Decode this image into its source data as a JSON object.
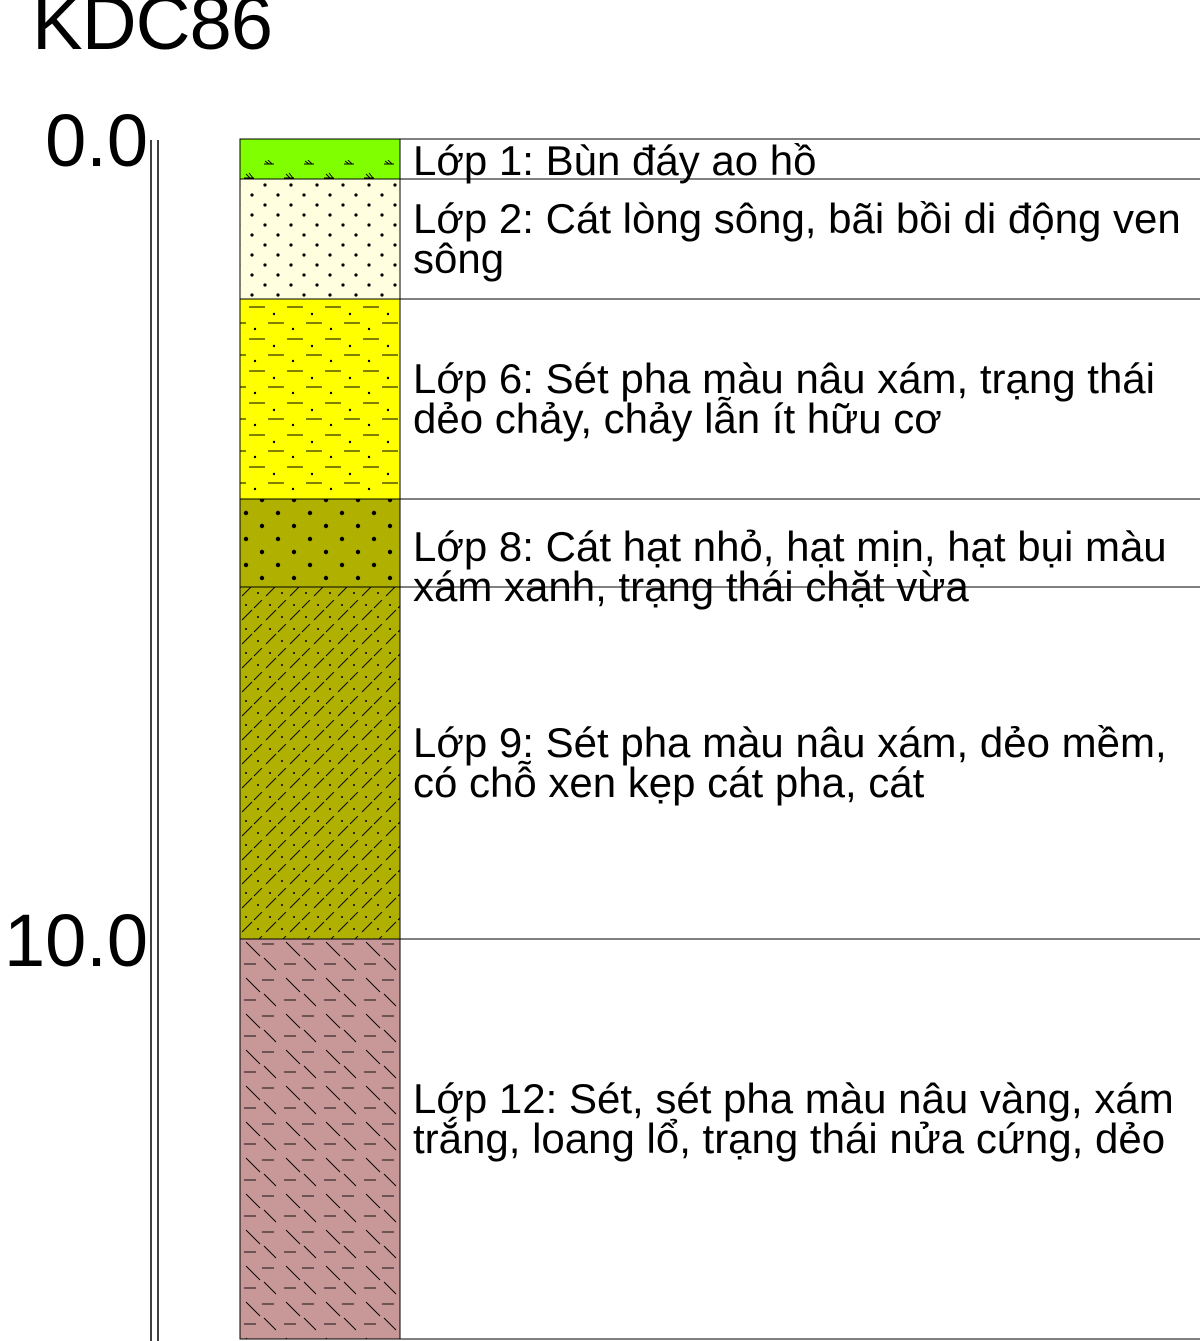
{
  "borehole": {
    "name": "KDC86",
    "depth_labels": [
      "0.0",
      "10.0"
    ]
  },
  "layers": [
    {
      "top": 0.0,
      "bottom": 0.5,
      "description": "Lớp 1: Bùn đáy ao hồ",
      "color": "#80ff00",
      "pattern": "grass"
    },
    {
      "top": 0.5,
      "bottom": 2.0,
      "description": "Lớp 2: Cát lòng sông, bãi bồi di động ven sông",
      "color": "#ffffe0",
      "pattern": "dots"
    },
    {
      "top": 2.0,
      "bottom": 4.5,
      "description": "Lớp 6: Sét pha màu nâu xám, trạng thái dẻo chảy, chảy lẫn ít hữu cơ",
      "color": "#ffff00",
      "pattern": "dash-dots"
    },
    {
      "top": 4.5,
      "bottom": 5.6,
      "description": "Lớp 8: Cát hạt nhỏ, hạt mịn, hạt bụi màu xám xanh, trạng thái chặt vừa",
      "color": "#b0b000",
      "pattern": "coarse-dots"
    },
    {
      "top": 5.6,
      "bottom": 10.0,
      "description": "Lớp 9: Sét pha màu nâu xám, dẻo mềm, có chỗ xen kẹp cát pha, cát",
      "color": "#b0b000",
      "pattern": "hatch-dots"
    },
    {
      "top": 10.0,
      "bottom": 15.0,
      "description": "Lớp 12: Sét, sét pha màu nâu vàng, xám trắng, loang lổ, trạng thái nửa cứng, dẻo",
      "color": "#c89898",
      "pattern": "backslash-dash"
    }
  ]
}
